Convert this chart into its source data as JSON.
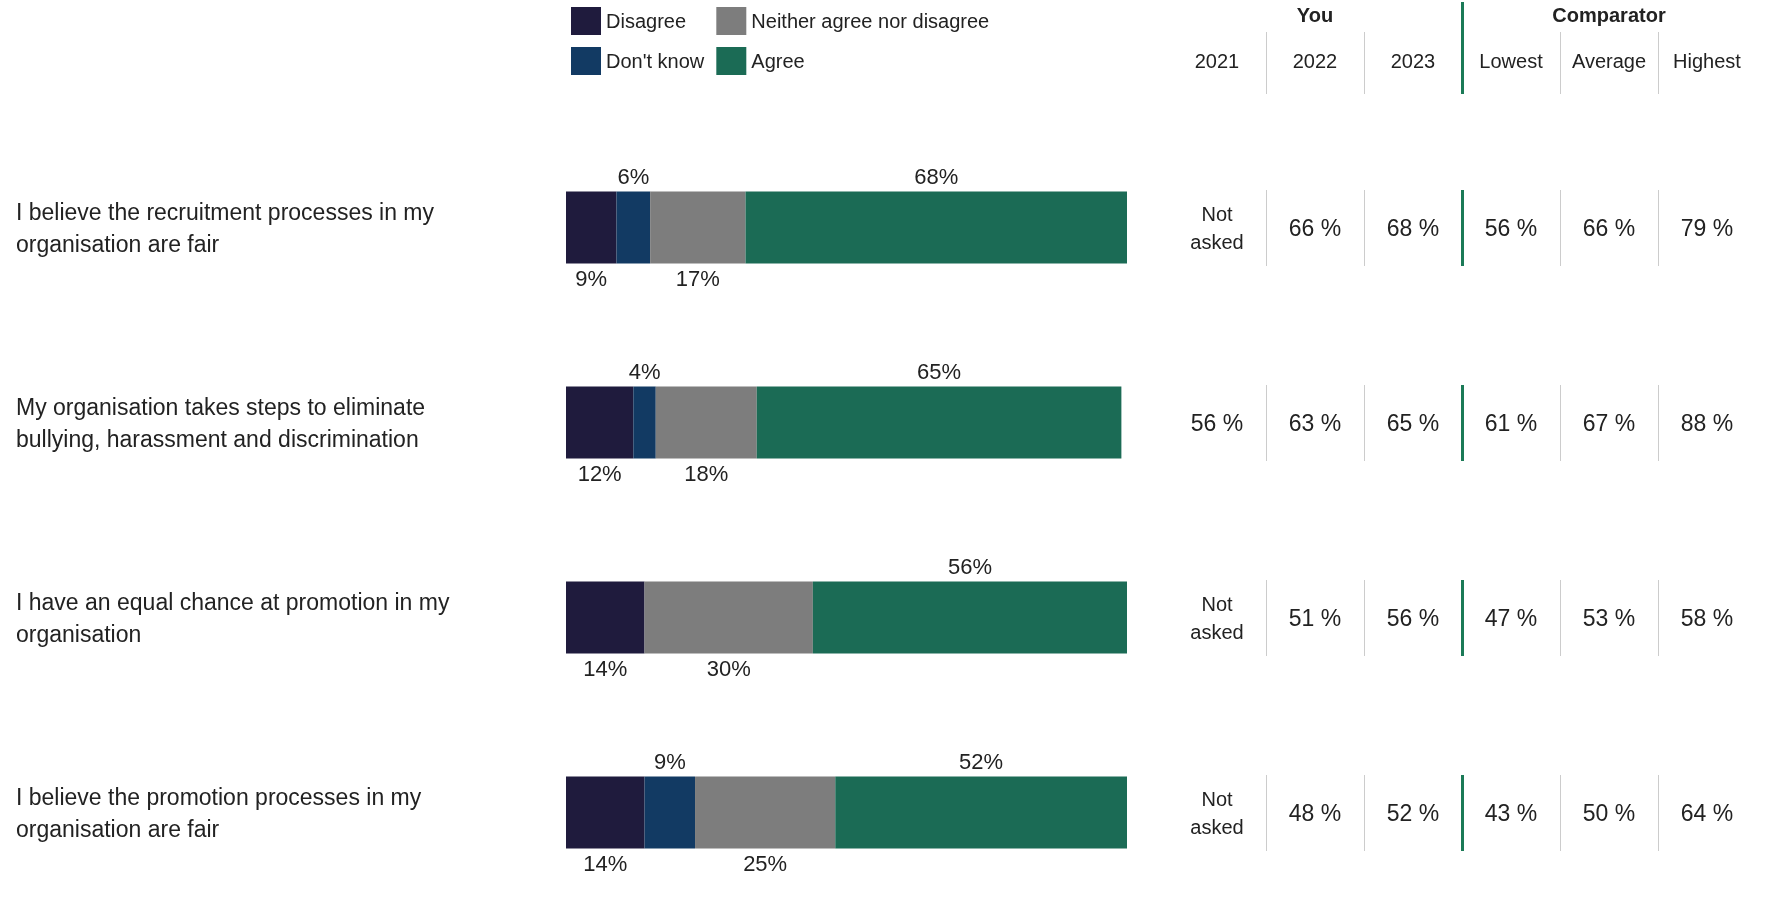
{
  "chart_data": [
    {
      "type": "bar",
      "orientation": "horizontal",
      "stacked": true,
      "categories": [
        "I believe the recruitment processes in my organisation are fair",
        "My organisation takes steps to eliminate bullying, harassment and discrimination",
        "I have an equal chance at promotion in my organisation",
        "I believe the promotion processes in my organisation are fair"
      ],
      "series": [
        {
          "name": "Disagree",
          "color": "#1f1b3d",
          "values": [
            9,
            12,
            14,
            14
          ],
          "value_labels": [
            "9%",
            "12%",
            "14%",
            "14%"
          ]
        },
        {
          "name": "Don't know",
          "color": "#123a63",
          "values": [
            6,
            4,
            null,
            9
          ],
          "value_labels": [
            "6%",
            "4%",
            null,
            "9%"
          ]
        },
        {
          "name": "Neither agree nor disagree",
          "color": "#7d7d7d",
          "values": [
            17,
            18,
            30,
            25
          ],
          "value_labels": [
            "17%",
            "18%",
            "30%",
            "25%"
          ]
        },
        {
          "name": "Agree",
          "color": "#1b6b55",
          "values": [
            68,
            65,
            56,
            52
          ],
          "value_labels": [
            "68%",
            "65%",
            "56%",
            "52%"
          ]
        }
      ],
      "tick_labels": "y",
      "legend": "top"
    },
    {
      "type": "other",
      "annotations": [
        "You",
        "Comparator"
      ],
      "categories": [
        "2021",
        "2022",
        "2023",
        "Lowest",
        "Average",
        "Highest"
      ],
      "cell_labels": [
        [
          "Not asked",
          "66 %",
          "68 %",
          "56 %",
          "66 %",
          "79 %"
        ],
        [
          "56 %",
          "63 %",
          "65 %",
          "61 %",
          "67 %",
          "88 %"
        ],
        [
          "Not asked",
          "51 %",
          "56 %",
          "47 %",
          "53 %",
          "58 %"
        ],
        [
          "Not asked",
          "48 %",
          "52 %",
          "43 %",
          "50 %",
          "64 %"
        ]
      ]
    }
  ]
}
